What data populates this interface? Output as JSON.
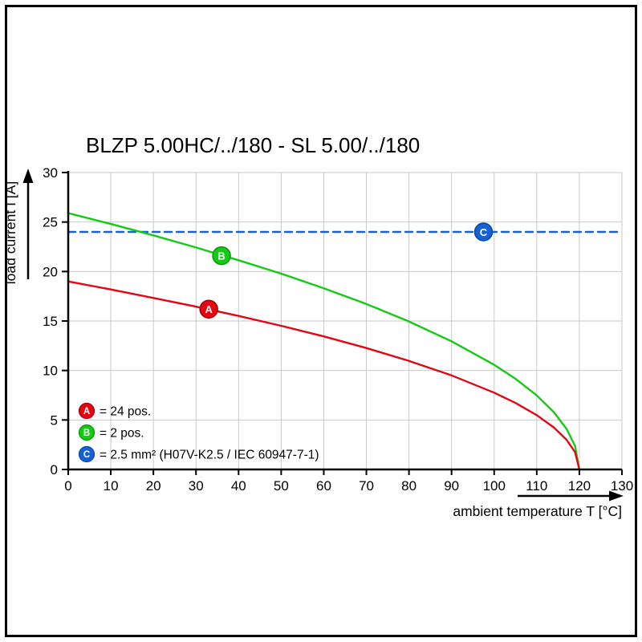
{
  "title": "BLZP 5.00HC/../180 - SL 5.00/../180",
  "chart_data": {
    "type": "line",
    "title": "BLZP 5.00HC/../180 - SL 5.00/../180",
    "xlabel": "ambient temperature T [°C]",
    "ylabel": "load current I [A]",
    "xlim": [
      0,
      130
    ],
    "ylim": [
      0,
      30
    ],
    "x_ticks": [
      0,
      10,
      20,
      30,
      40,
      50,
      60,
      70,
      80,
      90,
      100,
      110,
      120,
      130
    ],
    "y_ticks": [
      0,
      5,
      10,
      15,
      20,
      25,
      30
    ],
    "grid": true,
    "grid_color": "#c9c9c9",
    "axis_color": "#000000",
    "legend_position": "bottom-left-inside",
    "series": [
      {
        "name": "A",
        "legend_label": "= 24 pos.",
        "color": "#e30613",
        "edge_color": "#a30008",
        "style": "solid",
        "marker_at": [
          33,
          16.2
        ],
        "points": [
          [
            0,
            19.0
          ],
          [
            10,
            18.19
          ],
          [
            20,
            17.33
          ],
          [
            30,
            16.45
          ],
          [
            40,
            15.51
          ],
          [
            50,
            14.51
          ],
          [
            60,
            13.44
          ],
          [
            70,
            12.27
          ],
          [
            80,
            10.97
          ],
          [
            90,
            9.5
          ],
          [
            100,
            7.76
          ],
          [
            105,
            6.72
          ],
          [
            110,
            5.49
          ],
          [
            114,
            4.25
          ],
          [
            117,
            3.0
          ],
          [
            119,
            1.74
          ],
          [
            120,
            0
          ]
        ]
      },
      {
        "name": "B",
        "legend_label": "= 2 pos.",
        "color": "#14cb14",
        "edge_color": "#089708",
        "style": "solid",
        "marker_at": [
          36,
          21.6
        ],
        "points": [
          [
            0,
            25.9
          ],
          [
            10,
            24.8
          ],
          [
            20,
            23.65
          ],
          [
            30,
            22.43
          ],
          [
            40,
            21.14
          ],
          [
            50,
            19.78
          ],
          [
            60,
            18.31
          ],
          [
            70,
            16.72
          ],
          [
            80,
            14.95
          ],
          [
            90,
            12.95
          ],
          [
            100,
            10.57
          ],
          [
            105,
            9.16
          ],
          [
            110,
            7.48
          ],
          [
            114,
            5.79
          ],
          [
            117,
            4.1
          ],
          [
            119,
            2.37
          ],
          [
            120,
            0
          ]
        ]
      },
      {
        "name": "C",
        "legend_label": "= 2.5 mm² (H07V-K2.5 / IEC 60947-7-1)",
        "color": "#1561d6",
        "edge_color": "#0b46a0",
        "style": "dashed",
        "marker_at": [
          97.5,
          24
        ],
        "points": [
          [
            0,
            24
          ],
          [
            130,
            24
          ]
        ]
      }
    ]
  }
}
